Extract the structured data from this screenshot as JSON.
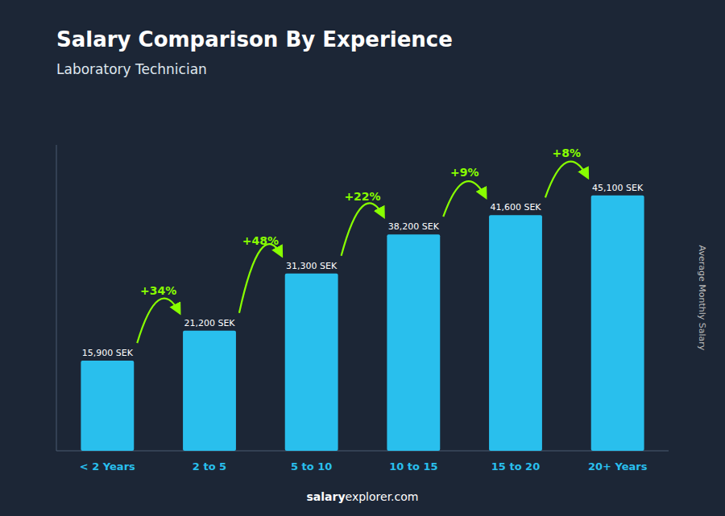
{
  "chart_data": {
    "type": "bar",
    "title": "Salary Comparison By Experience",
    "subtitle": "Laboratory Technician",
    "y_label": "Average Monthly Salary",
    "categories": [
      "< 2 Years",
      "2 to 5",
      "5 to 10",
      "10 to 15",
      "15 to 20",
      "20+ Years"
    ],
    "values": [
      15900,
      21200,
      31300,
      38200,
      41600,
      45100
    ],
    "value_labels": [
      "15,900 SEK",
      "21,200 SEK",
      "31,300 SEK",
      "38,200 SEK",
      "41,600 SEK",
      "45,100 SEK"
    ],
    "data_labels": true,
    "annotations": [
      "+34%",
      "+48%",
      "+22%",
      "+9%",
      "+8%"
    ],
    "footer": [
      "salary",
      "explorer.com"
    ],
    "color": "#29BFED",
    "ylim": [
      0,
      54000
    ],
    "tick_labels": "x",
    "grid": false
  }
}
